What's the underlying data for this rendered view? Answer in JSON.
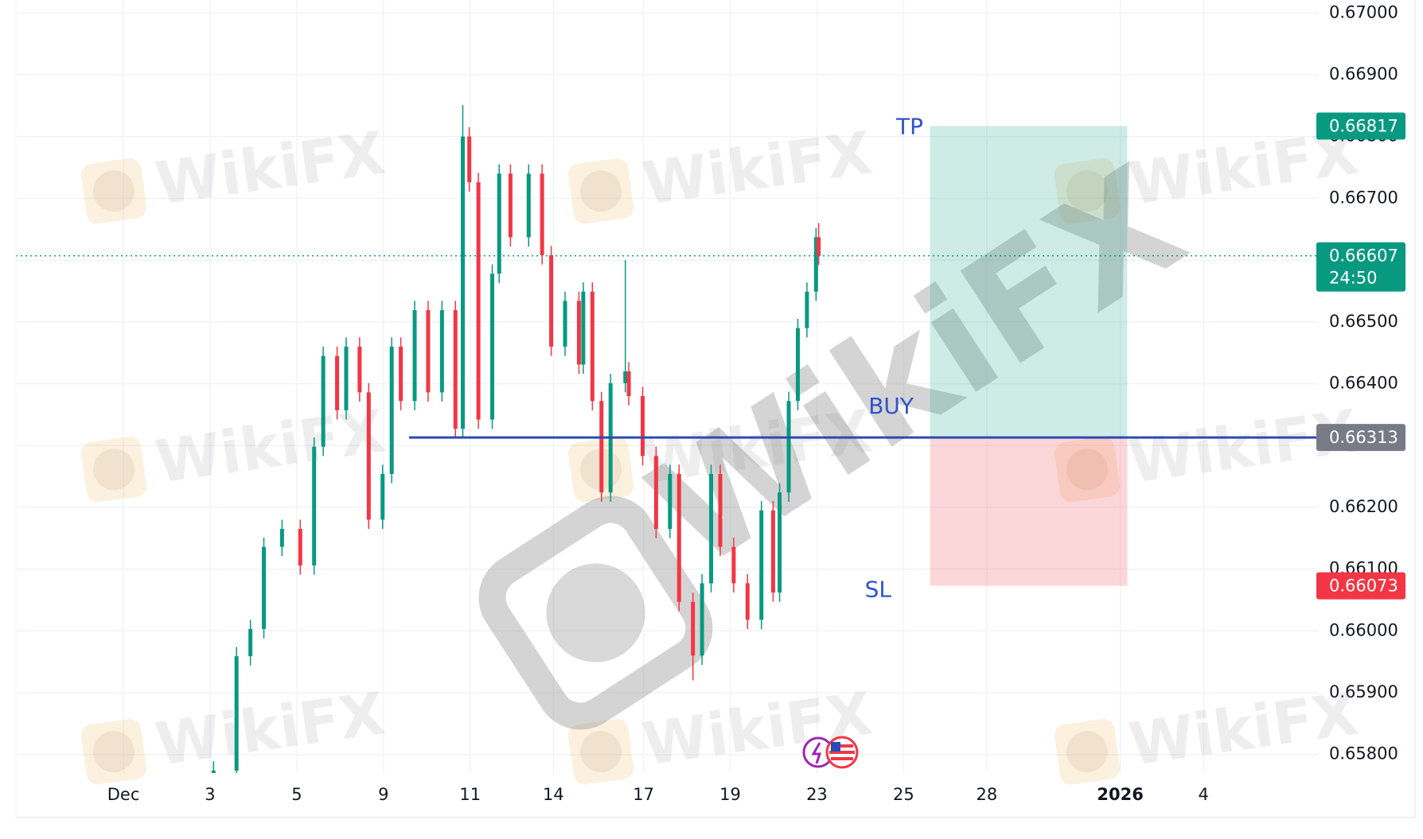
{
  "chart_data": {
    "type": "candlestick",
    "up_color": "#089981",
    "down_color": "#f23645",
    "grid": true,
    "xlim": [
      -2.48,
      27.56
    ],
    "xticks": [
      {
        "value": 0,
        "label": "Dec"
      },
      {
        "value": 2,
        "label": "3"
      },
      {
        "value": 4,
        "label": "5"
      },
      {
        "value": 6,
        "label": "9"
      },
      {
        "value": 8,
        "label": "11"
      },
      {
        "value": 9.92,
        "label": "14"
      },
      {
        "value": 12,
        "label": "17"
      },
      {
        "value": 14,
        "label": "19"
      },
      {
        "value": 16,
        "label": "23"
      },
      {
        "value": 18,
        "label": "25"
      },
      {
        "value": 19.92,
        "label": "28"
      },
      {
        "value": 23,
        "label": "2026",
        "bold": true
      },
      {
        "value": 24.92,
        "label": "4"
      }
    ],
    "ylim": [
      0.6577,
      0.67021
    ],
    "yticks": [
      {
        "value": 0.658,
        "label": "0.65800"
      },
      {
        "value": 0.659,
        "label": "0.65900"
      },
      {
        "value": 0.66,
        "label": "0.66000"
      },
      {
        "value": 0.661,
        "label": "0.66100"
      },
      {
        "value": 0.662,
        "label": "0.66200"
      },
      {
        "value": 0.663,
        "label": "0.66300"
      },
      {
        "value": 0.664,
        "label": "0.66400"
      },
      {
        "value": 0.665,
        "label": "0.66500"
      },
      {
        "value": 0.666,
        "label": "0.66600"
      },
      {
        "value": 0.667,
        "label": "0.66700"
      },
      {
        "value": 0.668,
        "label": "0.66800"
      },
      {
        "value": 0.669,
        "label": "0.66900"
      },
      {
        "value": 0.67,
        "label": "0.67000"
      }
    ],
    "candles": {
      "x": [
        2.08,
        2.61,
        2.93,
        3.24,
        3.66,
        4.08,
        4.4,
        4.61,
        4.93,
        5.14,
        5.45,
        5.66,
        5.98,
        6.19,
        6.4,
        6.72,
        7.03,
        7.35,
        7.66,
        7.83,
        7.98,
        8.19,
        8.51,
        8.67,
        8.93,
        9.35,
        9.66,
        9.87,
        10.19,
        10.51,
        10.61,
        10.82,
        11.03,
        11.24,
        11.58,
        11.66,
        11.98,
        12.29,
        12.61,
        12.82,
        13.14,
        13.35,
        13.56,
        13.77,
        14.08,
        14.4,
        14.72,
        14.99,
        15.14,
        15.35,
        15.56,
        15.77,
        15.98,
        16.04
      ],
      "open": [
        0.6574,
        0.65774,
        0.65959,
        0.66003,
        0.66136,
        0.66165,
        0.66106,
        0.66298,
        0.66445,
        0.66357,
        0.6646,
        0.66386,
        0.6618,
        0.66254,
        0.6646,
        0.66372,
        0.66519,
        0.66386,
        0.66519,
        0.66327,
        0.668,
        0.66726,
        0.66342,
        0.66578,
        0.6674,
        0.66637,
        0.6674,
        0.66608,
        0.6646,
        0.66534,
        0.66431,
        0.66549,
        0.66372,
        0.66224,
        0.66401,
        0.6642,
        0.6638,
        0.66283,
        0.66165,
        0.66254,
        0.66047,
        0.6596,
        0.66077,
        0.66254,
        0.66136,
        0.66077,
        0.66018,
        0.66195,
        0.66062,
        0.66224,
        0.66372,
        0.6649,
        0.66549,
        0.66637
      ],
      "high": [
        0.65789,
        0.65974,
        0.66018,
        0.66151,
        0.6618,
        0.6618,
        0.66313,
        0.6646,
        0.6646,
        0.66475,
        0.66475,
        0.66401,
        0.66269,
        0.66475,
        0.66475,
        0.66534,
        0.66534,
        0.66534,
        0.66534,
        0.66851,
        0.66815,
        0.66741,
        0.66593,
        0.66755,
        0.66755,
        0.66755,
        0.66755,
        0.66623,
        0.66549,
        0.66549,
        0.66564,
        0.66564,
        0.66387,
        0.66416,
        0.666,
        0.66435,
        0.66395,
        0.66298,
        0.66269,
        0.66269,
        0.66062,
        0.66092,
        0.66269,
        0.66269,
        0.66151,
        0.66092,
        0.6621,
        0.6621,
        0.66239,
        0.66387,
        0.66505,
        0.66564,
        0.66652,
        0.6666
      ],
      "low": [
        0.65725,
        0.65759,
        0.65944,
        0.65988,
        0.66121,
        0.66091,
        0.66091,
        0.66283,
        0.66342,
        0.66342,
        0.66371,
        0.66165,
        0.66165,
        0.66239,
        0.66357,
        0.66357,
        0.66371,
        0.66371,
        0.66312,
        0.66312,
        0.66711,
        0.66327,
        0.66327,
        0.66563,
        0.66622,
        0.66622,
        0.66593,
        0.66445,
        0.66445,
        0.66416,
        0.66416,
        0.66357,
        0.66209,
        0.66209,
        0.66386,
        0.66365,
        0.66268,
        0.6615,
        0.6615,
        0.66032,
        0.6592,
        0.65945,
        0.66062,
        0.66121,
        0.66062,
        0.66003,
        0.66003,
        0.66047,
        0.66047,
        0.66209,
        0.66357,
        0.66475,
        0.66534,
        0.66592
      ],
      "close": [
        0.65774,
        0.65959,
        0.66003,
        0.66136,
        0.66165,
        0.66106,
        0.66298,
        0.66445,
        0.66357,
        0.6646,
        0.66386,
        0.6618,
        0.66254,
        0.6646,
        0.66372,
        0.66519,
        0.66386,
        0.66519,
        0.66327,
        0.668,
        0.66726,
        0.66342,
        0.66578,
        0.6674,
        0.66637,
        0.6674,
        0.66608,
        0.6646,
        0.66534,
        0.66431,
        0.66549,
        0.66372,
        0.66224,
        0.66401,
        0.6642,
        0.6638,
        0.66283,
        0.66165,
        0.66254,
        0.66047,
        0.6596,
        0.66077,
        0.66254,
        0.66136,
        0.66077,
        0.66018,
        0.66195,
        0.66062,
        0.66224,
        0.66372,
        0.6649,
        0.66549,
        0.66637,
        0.66607
      ]
    },
    "last_price": {
      "value": 0.66607,
      "countdown": "24:50",
      "color": "#089981"
    },
    "position": {
      "tp": 0.66817,
      "entry": 0.66313,
      "sl": 0.66073,
      "tp_label": "TP",
      "entry_label": "BUY",
      "sl_label": "SL",
      "start": 18.61,
      "end": 23.16,
      "line_start": 6.59,
      "profit_color": "#089981",
      "loss_color": "#f23645",
      "entry_color": "#787b86",
      "line_color": "#2a4bb5"
    },
    "watermark": "WikiFX"
  }
}
